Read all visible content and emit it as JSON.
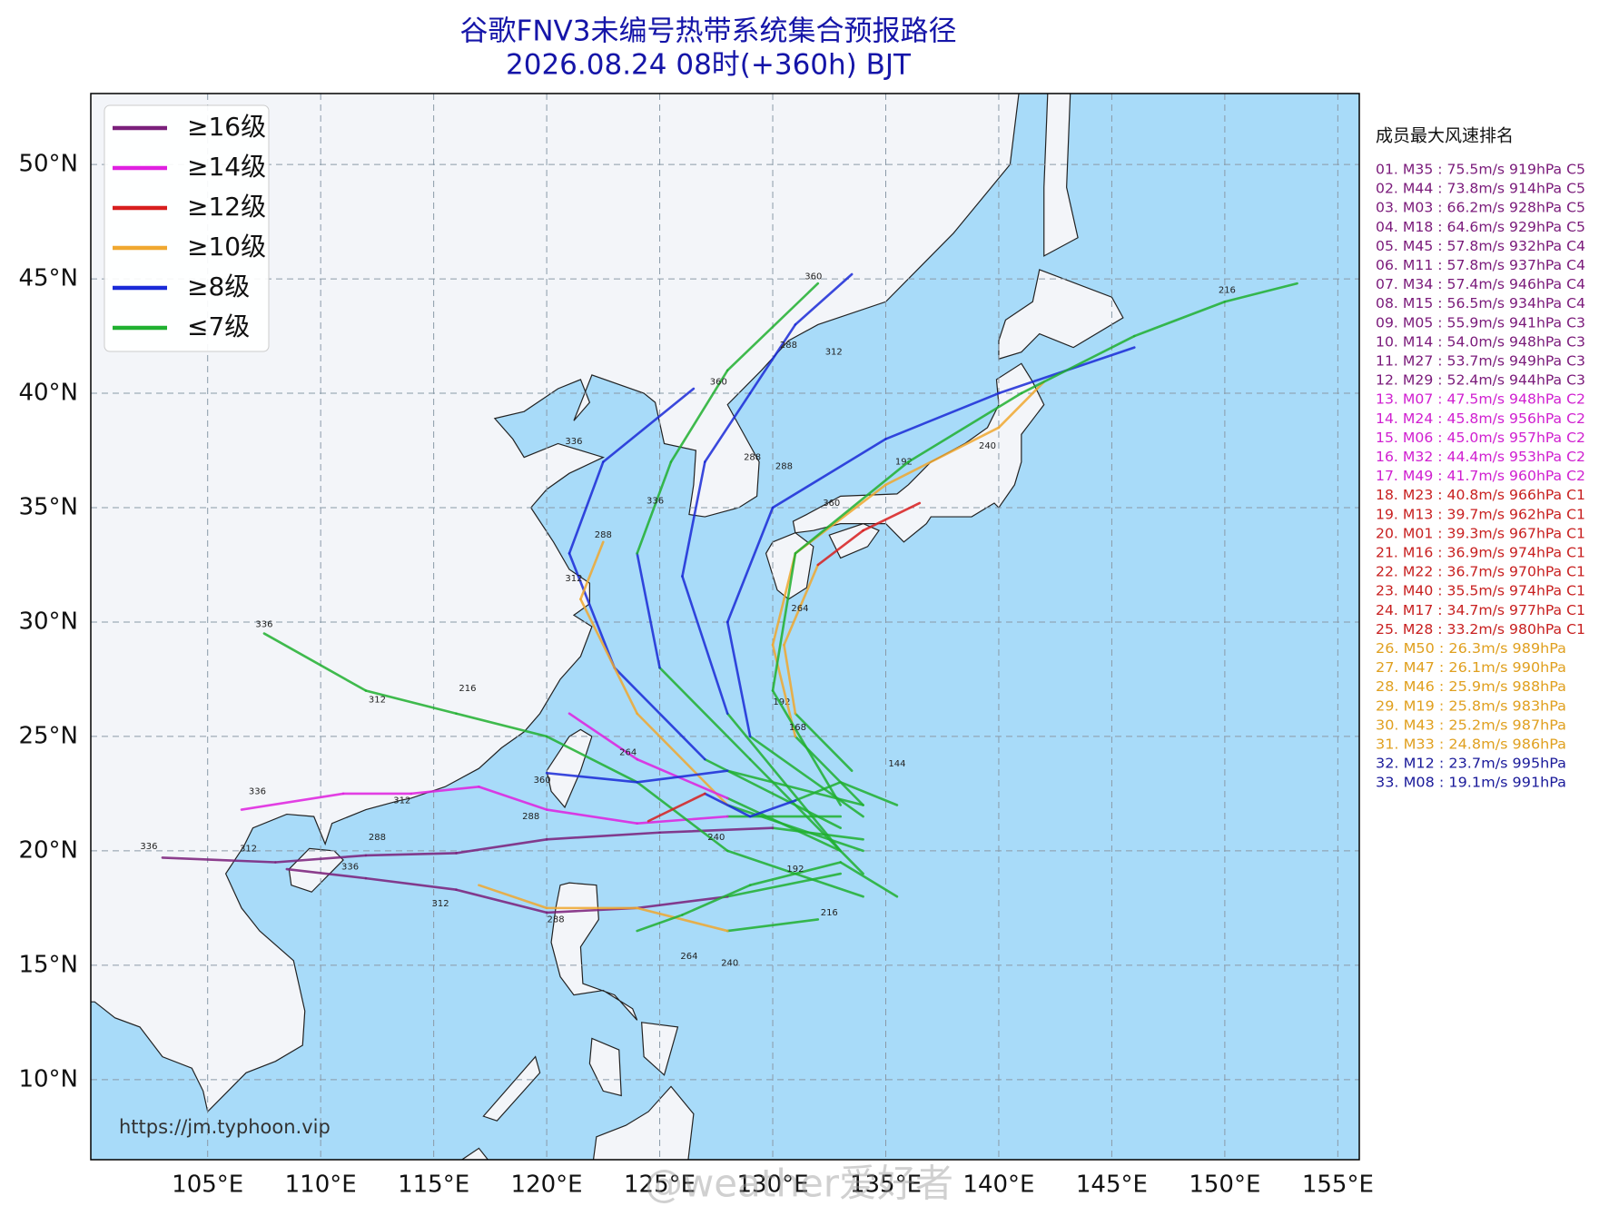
{
  "title": "谷歌FNV3未编号热带系统集合预报路径",
  "subtitle": "2026.08.24 08时(+360h) BJT",
  "map": {
    "lonlim": [
      99.83,
      155.95
    ],
    "latlim": [
      6.5,
      53.1
    ],
    "lat_ticks": [
      {
        "value": 10,
        "label": "10°N"
      },
      {
        "value": 15,
        "label": "15°N"
      },
      {
        "value": 20,
        "label": "20°N"
      },
      {
        "value": 25,
        "label": "25°N"
      },
      {
        "value": 30,
        "label": "30°N"
      },
      {
        "value": 35,
        "label": "35°N"
      },
      {
        "value": 40,
        "label": "40°N"
      },
      {
        "value": 45,
        "label": "45°N"
      },
      {
        "value": 50,
        "label": "50°N"
      }
    ],
    "lon_ticks": [
      {
        "value": 105,
        "label": "105°E"
      },
      {
        "value": 110,
        "label": "110°E"
      },
      {
        "value": 115,
        "label": "115°E"
      },
      {
        "value": 120,
        "label": "120°E"
      },
      {
        "value": 125,
        "label": "125°E"
      },
      {
        "value": 130,
        "label": "130°E"
      },
      {
        "value": 135,
        "label": "135°E"
      },
      {
        "value": 140,
        "label": "140°E"
      },
      {
        "value": 145,
        "label": "145°E"
      },
      {
        "value": 150,
        "label": "150°E"
      },
      {
        "value": 155,
        "label": "155°E"
      }
    ],
    "grid": true
  },
  "legend": [
    {
      "label": "≥16级",
      "color": "#7b1f7b"
    },
    {
      "label": "≥14级",
      "color": "#e020e0"
    },
    {
      "label": "≥12级",
      "color": "#d81e1e"
    },
    {
      "label": "≥10级",
      "color": "#f0a830"
    },
    {
      "label": "≥8级",
      "color": "#1a2ad8"
    },
    {
      "label": "≤7级",
      "color": "#20b030"
    }
  ],
  "ranking": {
    "title": "成员最大风速排名",
    "items": [
      {
        "text": "01. M35 : 75.5m/s 919hPa C5",
        "color": "#7a1a7a"
      },
      {
        "text": "02. M44 : 73.8m/s 914hPa C5",
        "color": "#7a1a7a"
      },
      {
        "text": "03. M03 : 66.2m/s 928hPa C5",
        "color": "#7a1a7a"
      },
      {
        "text": "04. M18 : 64.6m/s 929hPa C5",
        "color": "#7a1a7a"
      },
      {
        "text": "05. M45 : 57.8m/s 932hPa C4",
        "color": "#7a1a7a"
      },
      {
        "text": "06. M11 : 57.8m/s 937hPa C4",
        "color": "#7a1a7a"
      },
      {
        "text": "07. M34 : 57.4m/s 946hPa C4",
        "color": "#7a1a7a"
      },
      {
        "text": "08. M15 : 56.5m/s 934hPa C4",
        "color": "#7a1a7a"
      },
      {
        "text": "09. M05 : 55.9m/s 941hPa C3",
        "color": "#7a1a7a"
      },
      {
        "text": "10. M14 : 54.0m/s 948hPa C3",
        "color": "#7a1a7a"
      },
      {
        "text": "11. M27 : 53.7m/s 949hPa C3",
        "color": "#7a1a7a"
      },
      {
        "text": "12. M29 : 52.4m/s 944hPa C3",
        "color": "#7a1a7a"
      },
      {
        "text": "13. M07 : 47.5m/s 948hPa C2",
        "color": "#d020d0"
      },
      {
        "text": "14. M24 : 45.8m/s 956hPa C2",
        "color": "#d020d0"
      },
      {
        "text": "15. M06 : 45.0m/s 957hPa C2",
        "color": "#d020d0"
      },
      {
        "text": "16. M32 : 44.4m/s 953hPa C2",
        "color": "#d020d0"
      },
      {
        "text": "17. M49 : 41.7m/s 960hPa C2",
        "color": "#d020d0"
      },
      {
        "text": "18. M23 : 40.8m/s 966hPa C1",
        "color": "#c82020"
      },
      {
        "text": "19. M13 : 39.7m/s 962hPa C1",
        "color": "#c82020"
      },
      {
        "text": "20. M01 : 39.3m/s 967hPa C1",
        "color": "#c82020"
      },
      {
        "text": "21. M16 : 36.9m/s 974hPa C1",
        "color": "#c82020"
      },
      {
        "text": "22. M22 : 36.7m/s 970hPa C1",
        "color": "#c82020"
      },
      {
        "text": "23. M40 : 35.5m/s 974hPa C1",
        "color": "#c82020"
      },
      {
        "text": "24. M17 : 34.7m/s 977hPa C1",
        "color": "#c82020"
      },
      {
        "text": "25. M28 : 33.2m/s 980hPa C1",
        "color": "#c82020"
      },
      {
        "text": "26. M50 : 26.3m/s 989hPa",
        "color": "#e0a020"
      },
      {
        "text": "27. M47 : 26.1m/s 990hPa",
        "color": "#e0a020"
      },
      {
        "text": "28. M46 : 25.9m/s 988hPa",
        "color": "#e0a020"
      },
      {
        "text": "29. M19 : 25.8m/s 983hPa",
        "color": "#e0a020"
      },
      {
        "text": "30. M43 : 25.2m/s 987hPa",
        "color": "#e0a020"
      },
      {
        "text": "31. M33 : 24.8m/s 986hPa",
        "color": "#e0a020"
      },
      {
        "text": "32. M12 : 23.7m/s 995hPa",
        "color": "#1a1a9a"
      },
      {
        "text": "33. M08 : 19.1m/s 991hPa",
        "color": "#1a1a9a"
      }
    ]
  },
  "source": "https://jm.typhoon.vip",
  "watermark": "@weather爱好者",
  "tracks": [
    {
      "points": [
        [
          134,
          20.5
        ],
        [
          130,
          21
        ],
        [
          125,
          20.8
        ],
        [
          120,
          20.5
        ],
        [
          116,
          19.9
        ],
        [
          112,
          19.8
        ],
        [
          108,
          19.5
        ],
        [
          103,
          19.7
        ]
      ],
      "colors": [
        "#20b030",
        "#7b1f7b",
        "#7b1f7b",
        "#7b1f7b",
        "#7b1f7b",
        "#7b1f7b",
        "#7b1f7b"
      ],
      "labels": [
        {
          "lon": 102.4,
          "lat": 20.2,
          "h": 336
        },
        {
          "lon": 106.8,
          "lat": 20.1,
          "h": 312
        },
        {
          "lon": 112.5,
          "lat": 20.6,
          "h": 288
        }
      ]
    },
    {
      "points": [
        [
          133,
          21.5
        ],
        [
          128,
          21.5
        ],
        [
          124,
          21.2
        ],
        [
          120,
          21.8
        ],
        [
          117,
          22.8
        ],
        [
          114,
          22.5
        ],
        [
          111,
          22.5
        ],
        [
          106.5,
          21.8
        ]
      ],
      "colors": [
        "#20b030",
        "#e020e0",
        "#e020e0",
        "#e020e0",
        "#e020e0",
        "#e020e0",
        "#e020e0"
      ],
      "labels": [
        {
          "lon": 119.3,
          "lat": 21.5,
          "h": 288
        },
        {
          "lon": 113.6,
          "lat": 22.2,
          "h": 312
        },
        {
          "lon": 107.2,
          "lat": 22.6,
          "h": 336
        }
      ]
    },
    {
      "points": [
        [
          133,
          19
        ],
        [
          128,
          18
        ],
        [
          124,
          17.5
        ],
        [
          120,
          17.3
        ],
        [
          116,
          18.3
        ],
        [
          112,
          18.8
        ],
        [
          108.5,
          19.2
        ]
      ],
      "colors": [
        "#20b030",
        "#7b1f7b",
        "#7b1f7b",
        "#7b1f7b",
        "#7b1f7b",
        "#7b1f7b"
      ],
      "labels": [
        {
          "lon": 120.4,
          "lat": 17.0,
          "h": 288
        },
        {
          "lon": 115.3,
          "lat": 17.7,
          "h": 312
        },
        {
          "lon": 111.3,
          "lat": 19.3,
          "h": 336
        }
      ]
    },
    {
      "points": [
        [
          133.5,
          23.5
        ],
        [
          131,
          26
        ],
        [
          130.5,
          29
        ],
        [
          132,
          32.5
        ],
        [
          134,
          34
        ],
        [
          136.5,
          35.2
        ]
      ],
      "colors": [
        "#20b030",
        "#f0a830",
        "#f0a830",
        "#d81e1e",
        "#d81e1e"
      ],
      "labels": [
        {
          "lon": 130.4,
          "lat": 26.5,
          "h": 192
        },
        {
          "lon": 131.2,
          "lat": 30.6,
          "h": 264
        }
      ]
    },
    {
      "points": [
        [
          134,
          22
        ],
        [
          131,
          25
        ],
        [
          130,
          29
        ],
        [
          131,
          33
        ],
        [
          135,
          36
        ],
        [
          140,
          38.5
        ],
        [
          142,
          40.5
        ]
      ],
      "colors": [
        "#20b030",
        "#f0a830",
        "#f0a830",
        "#f0a830",
        "#f0a830",
        "#f0a830"
      ],
      "labels": [
        {
          "lon": 132.6,
          "lat": 35.2,
          "h": 360
        },
        {
          "lon": 139.5,
          "lat": 37.7,
          "h": 240
        }
      ]
    },
    {
      "points": [
        [
          134,
          21.5
        ],
        [
          129,
          25
        ],
        [
          128,
          30
        ],
        [
          130,
          35
        ],
        [
          135,
          38
        ],
        [
          140,
          40
        ],
        [
          146,
          42
        ]
      ],
      "colors": [
        "#20b030",
        "#1a2ad8",
        "#1a2ad8",
        "#1a2ad8",
        "#1a2ad8",
        "#1a2ad8"
      ],
      "labels": [
        {
          "lon": 135.8,
          "lat": 37.0,
          "h": 192
        },
        {
          "lon": 130.5,
          "lat": 36.8,
          "h": 288
        }
      ]
    },
    {
      "points": [
        [
          133,
          22
        ],
        [
          130,
          27
        ],
        [
          131,
          33
        ],
        [
          136,
          37
        ],
        [
          141,
          40
        ],
        [
          146,
          42.5
        ],
        [
          150,
          44
        ],
        [
          153.2,
          44.8
        ]
      ],
      "colors": [
        "#20b030",
        "#20b030",
        "#20b030",
        "#20b030",
        "#20b030",
        "#20b030",
        "#20b030"
      ],
      "labels": [
        {
          "lon": 150.1,
          "lat": 44.5,
          "h": 216
        }
      ]
    },
    {
      "points": [
        [
          133,
          20
        ],
        [
          128,
          26
        ],
        [
          126,
          32
        ],
        [
          127,
          37
        ],
        [
          129,
          40
        ],
        [
          131,
          43
        ],
        [
          133.5,
          45.2
        ]
      ],
      "colors": [
        "#20b030",
        "#1a2ad8",
        "#1a2ad8",
        "#1a2ad8",
        "#1a2ad8",
        "#1a2ad8"
      ],
      "labels": [
        {
          "lon": 130.7,
          "lat": 42.1,
          "h": 288
        },
        {
          "lon": 132.7,
          "lat": 41.8,
          "h": 312
        },
        {
          "lon": 129.1,
          "lat": 37.2,
          "h": 288
        }
      ]
    },
    {
      "points": [
        [
          134,
          19
        ],
        [
          129,
          24
        ],
        [
          125,
          28
        ],
        [
          124,
          33
        ],
        [
          125.5,
          37
        ],
        [
          128,
          41
        ],
        [
          132,
          44.8
        ]
      ],
      "colors": [
        "#20b030",
        "#20b030",
        "#1a2ad8",
        "#20b030",
        "#20b030",
        "#20b030"
      ],
      "labels": [
        {
          "lon": 131.8,
          "lat": 45.1,
          "h": 360
        },
        {
          "lon": 127.6,
          "lat": 40.5,
          "h": 360
        }
      ]
    },
    {
      "points": [
        [
          133,
          21
        ],
        [
          127,
          24
        ],
        [
          123,
          28
        ],
        [
          121,
          33
        ],
        [
          122.5,
          37
        ],
        [
          126.5,
          40.2
        ]
      ],
      "colors": [
        "#20b030",
        "#1a2ad8",
        "#1a2ad8",
        "#1a2ad8",
        "#1a2ad8"
      ],
      "labels": [
        {
          "lon": 121.2,
          "lat": 37.9,
          "h": 336
        },
        {
          "lon": 124.8,
          "lat": 35.3,
          "h": 336
        }
      ]
    },
    {
      "points": [
        [
          134,
          20
        ],
        [
          128,
          22
        ],
        [
          124,
          26
        ],
        [
          121.5,
          31
        ],
        [
          122.5,
          33.5
        ]
      ],
      "colors": [
        "#20b030",
        "#f0a830",
        "#f0a830",
        "#f0a830"
      ],
      "labels": [
        {
          "lon": 121.2,
          "lat": 31.9,
          "h": 312
        },
        {
          "lon": 122.5,
          "lat": 33.8,
          "h": 288
        }
      ]
    },
    {
      "points": [
        [
          134,
          18
        ],
        [
          128,
          20
        ],
        [
          124,
          23
        ],
        [
          120,
          25
        ],
        [
          116,
          26
        ],
        [
          112,
          27
        ],
        [
          107.5,
          29.5
        ]
      ],
      "colors": [
        "#20b030",
        "#20b030",
        "#20b030",
        "#20b030",
        "#20b030",
        "#20b030"
      ],
      "labels": [
        {
          "lon": 107.5,
          "lat": 29.9,
          "h": 336
        },
        {
          "lon": 112.5,
          "lat": 26.6,
          "h": 312
        },
        {
          "lon": 116.5,
          "lat": 27.1,
          "h": 216
        }
      ]
    },
    {
      "points": [
        [
          133,
          20
        ],
        [
          128,
          22.3
        ],
        [
          124,
          24
        ],
        [
          121,
          26
        ]
      ],
      "colors": [
        "#20b030",
        "#e020e0",
        "#e020e0"
      ],
      "labels": [
        {
          "lon": 123.6,
          "lat": 24.3,
          "h": 264
        }
      ]
    },
    {
      "points": [
        [
          134,
          22
        ],
        [
          128,
          23.5
        ],
        [
          124,
          23
        ],
        [
          120,
          23.4
        ]
      ],
      "colors": [
        "#20b030",
        "#1a2ad8",
        "#1a2ad8"
      ],
      "labels": [
        {
          "lon": 119.8,
          "lat": 23.1,
          "h": 360
        }
      ]
    },
    {
      "points": [
        [
          132,
          17
        ],
        [
          128,
          16.5
        ],
        [
          124,
          17.5
        ],
        [
          120,
          17.5
        ],
        [
          117,
          18.5
        ]
      ],
      "colors": [
        "#20b030",
        "#f0a830",
        "#f0a830",
        "#f0a830"
      ],
      "labels": [
        {
          "lon": 126.3,
          "lat": 15.4,
          "h": 264
        },
        {
          "lon": 128.1,
          "lat": 15.1,
          "h": 240
        }
      ]
    },
    {
      "points": [
        [
          135.5,
          18
        ],
        [
          133,
          19.5
        ],
        [
          131,
          19
        ],
        [
          129,
          18.5
        ],
        [
          126,
          17.2
        ],
        [
          124,
          16.5
        ]
      ],
      "colors": [
        "#20b030",
        "#20b030",
        "#20b030",
        "#20b030",
        "#20b030"
      ],
      "labels": [
        {
          "lon": 131,
          "lat": 19.2,
          "h": 192
        },
        {
          "lon": 132.5,
          "lat": 17.3,
          "h": 216
        }
      ]
    },
    {
      "points": [
        [
          135.5,
          22
        ],
        [
          133,
          23
        ],
        [
          131,
          22.2
        ],
        [
          129,
          21.5
        ],
        [
          127,
          22.5
        ],
        [
          124.5,
          21.3
        ]
      ],
      "colors": [
        "#20b030",
        "#20b030",
        "#1a2ad8",
        "#1a2ad8",
        "#d81e1e"
      ],
      "labels": [
        {
          "lon": 135.5,
          "lat": 23.8,
          "h": 144
        },
        {
          "lon": 131.1,
          "lat": 25.4,
          "h": 168
        },
        {
          "lon": 127.5,
          "lat": 20.6,
          "h": 240
        }
      ]
    }
  ]
}
